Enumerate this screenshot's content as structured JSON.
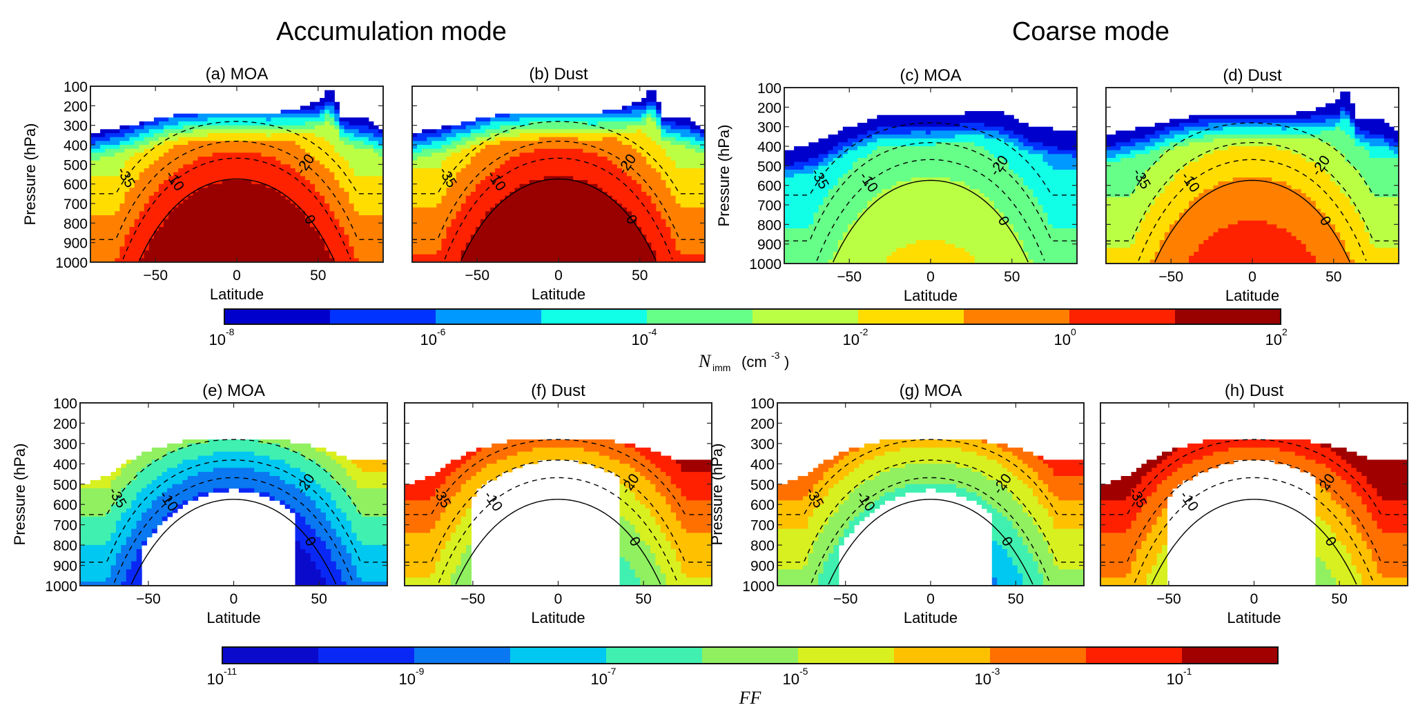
{
  "figure": {
    "column_titles": [
      "Accumulation mode",
      "Coarse mode"
    ]
  },
  "chart_data": {
    "type": "heatmap",
    "xlabel": "Latitude",
    "ylabel": "Pressure (hPa)",
    "xlim": [
      -90,
      90
    ],
    "ylim": [
      1000,
      100
    ],
    "xticks": [
      -50,
      0,
      50
    ],
    "xtick_labels": [
      "−50",
      "0",
      "50"
    ],
    "yticks": [
      100,
      200,
      300,
      400,
      500,
      600,
      700,
      800,
      900,
      1000
    ],
    "ytick_labels": [
      "100",
      "200",
      "300",
      "400",
      "500",
      "600",
      "700",
      "800",
      "900",
      "1000"
    ],
    "isotherms": [
      {
        "value": -35,
        "label": "-35",
        "style": "dashed"
      },
      {
        "value": -20,
        "label": "-20",
        "style": "dashed"
      },
      {
        "value": -10,
        "label": "-10",
        "style": "dashed"
      },
      {
        "value": 0,
        "label": "0",
        "style": "solid"
      }
    ],
    "panels": [
      {
        "id": "a",
        "title": "(a) MOA",
        "mode": "Accumulation mode",
        "variable": "N_imm",
        "colorbar": 0
      },
      {
        "id": "b",
        "title": "(b) Dust",
        "mode": "Accumulation mode",
        "variable": "N_imm",
        "colorbar": 0
      },
      {
        "id": "c",
        "title": "(c) MOA",
        "mode": "Coarse mode",
        "variable": "N_imm",
        "colorbar": 0
      },
      {
        "id": "d",
        "title": "(d) Dust",
        "mode": "Coarse mode",
        "variable": "N_imm",
        "colorbar": 0
      },
      {
        "id": "e",
        "title": "(e) MOA",
        "mode": "Accumulation mode",
        "variable": "FF",
        "colorbar": 1
      },
      {
        "id": "f",
        "title": "(f) Dust",
        "mode": "Accumulation mode",
        "variable": "FF",
        "colorbar": 1
      },
      {
        "id": "g",
        "title": "(g) MOA",
        "mode": "Coarse mode",
        "variable": "FF",
        "colorbar": 1
      },
      {
        "id": "h",
        "title": "(h) Dust",
        "mode": "Coarse mode",
        "variable": "FF",
        "colorbar": 1
      }
    ],
    "colorbars": [
      {
        "scale": "log10",
        "range_log10": [
          -8,
          2
        ],
        "tick_base": "10",
        "tick_exponents": [
          "-8",
          "-6",
          "-4",
          "-2",
          "0",
          "2"
        ],
        "label_symbol": "N",
        "label_subscript": "imm",
        "label_unit": "(cm",
        "label_unit_exp": "-3",
        "label_unit_close": ")",
        "colors": [
          "#0000cc",
          "#0033ff",
          "#0099ff",
          "#11ffe6",
          "#66ff88",
          "#bbff44",
          "#ffdd00",
          "#ff8000",
          "#ff2200",
          "#990000"
        ]
      },
      {
        "scale": "log10",
        "range_log10": [
          -11,
          0
        ],
        "tick_base": "10",
        "tick_exponents": [
          "-11",
          "-9",
          "-7",
          "-5",
          "-3",
          "-1"
        ],
        "label_symbol": "FF",
        "colors": [
          "#0a0acd",
          "#0a28f5",
          "#0a78f0",
          "#00c8f0",
          "#40f0b0",
          "#90f060",
          "#d8f020",
          "#ffc000",
          "#ff7000",
          "#ff2000",
          "#a00000"
        ]
      }
    ]
  }
}
